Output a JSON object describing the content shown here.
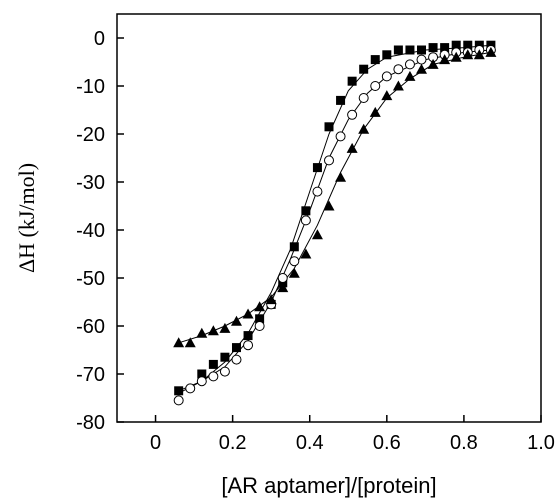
{
  "chart_data": {
    "type": "scatter",
    "xlabel": "[AR aptamer]/[protein]",
    "ylabel": "ΔH (kJ/mol)",
    "xlim": [
      -0.1,
      1.0
    ],
    "ylim": [
      -80,
      5
    ],
    "x_ticks": [
      0,
      0.2,
      0.4,
      0.6,
      0.8,
      1.0
    ],
    "x_tick_labels": [
      "0",
      "0.2",
      "0.4",
      "0.6",
      "0.8",
      "1.0"
    ],
    "y_ticks": [
      0,
      -10,
      -20,
      -30,
      -40,
      -50,
      -60,
      -70,
      -80
    ],
    "y_tick_labels": [
      "0",
      "-10",
      "-20",
      "-30",
      "-40",
      "-50",
      "-60",
      "-70",
      "-80"
    ],
    "grid": false,
    "legend": "none",
    "series": [
      {
        "marker": "filled-square",
        "color": "#000000",
        "points": [
          [
            0.06,
            -73.5
          ],
          [
            0.12,
            -70
          ],
          [
            0.15,
            -68
          ],
          [
            0.18,
            -66.5
          ],
          [
            0.21,
            -64.5
          ],
          [
            0.24,
            -62
          ],
          [
            0.27,
            -58.5
          ],
          [
            0.3,
            -55.5
          ],
          [
            0.33,
            -51
          ],
          [
            0.36,
            -43.5
          ],
          [
            0.39,
            -36
          ],
          [
            0.42,
            -27
          ],
          [
            0.45,
            -18.5
          ],
          [
            0.48,
            -13
          ],
          [
            0.51,
            -9
          ],
          [
            0.54,
            -6.5
          ],
          [
            0.57,
            -4.5
          ],
          [
            0.6,
            -3.5
          ],
          [
            0.63,
            -2.5
          ],
          [
            0.66,
            -2.5
          ],
          [
            0.69,
            -2.5
          ],
          [
            0.72,
            -2
          ],
          [
            0.75,
            -2
          ],
          [
            0.78,
            -1.5
          ],
          [
            0.81,
            -1.5
          ],
          [
            0.84,
            -1.5
          ],
          [
            0.87,
            -1.5
          ]
        ],
        "fit": [
          [
            0.06,
            -73.5
          ],
          [
            0.12,
            -71.5
          ],
          [
            0.18,
            -67.5
          ],
          [
            0.24,
            -61.5
          ],
          [
            0.3,
            -53
          ],
          [
            0.35,
            -44
          ],
          [
            0.4,
            -32
          ],
          [
            0.45,
            -20
          ],
          [
            0.5,
            -11
          ],
          [
            0.55,
            -6.5
          ],
          [
            0.6,
            -4
          ],
          [
            0.7,
            -2.5
          ],
          [
            0.8,
            -2
          ],
          [
            0.87,
            -1.5
          ]
        ]
      },
      {
        "marker": "open-circle",
        "color": "#000000",
        "points": [
          [
            0.06,
            -75.5
          ],
          [
            0.09,
            -73
          ],
          [
            0.12,
            -71.5
          ],
          [
            0.15,
            -70.5
          ],
          [
            0.18,
            -69.5
          ],
          [
            0.21,
            -67
          ],
          [
            0.24,
            -64
          ],
          [
            0.27,
            -60
          ],
          [
            0.3,
            -55.5
          ],
          [
            0.33,
            -50
          ],
          [
            0.36,
            -46.5
          ],
          [
            0.39,
            -38
          ],
          [
            0.42,
            -32
          ],
          [
            0.45,
            -25.5
          ],
          [
            0.48,
            -20.5
          ],
          [
            0.51,
            -16
          ],
          [
            0.54,
            -12.5
          ],
          [
            0.57,
            -10
          ],
          [
            0.6,
            -8
          ],
          [
            0.63,
            -6.5
          ],
          [
            0.66,
            -5.5
          ],
          [
            0.69,
            -4.5
          ],
          [
            0.72,
            -4
          ],
          [
            0.75,
            -3.5
          ],
          [
            0.78,
            -3
          ],
          [
            0.81,
            -3
          ],
          [
            0.84,
            -2.5
          ],
          [
            0.87,
            -2.5
          ]
        ],
        "fit": [
          [
            0.06,
            -74
          ],
          [
            0.12,
            -71.5
          ],
          [
            0.18,
            -68.5
          ],
          [
            0.24,
            -63
          ],
          [
            0.3,
            -55
          ],
          [
            0.35,
            -46
          ],
          [
            0.4,
            -36
          ],
          [
            0.45,
            -25
          ],
          [
            0.5,
            -17
          ],
          [
            0.55,
            -11.5
          ],
          [
            0.6,
            -8
          ],
          [
            0.7,
            -4.5
          ],
          [
            0.8,
            -3
          ],
          [
            0.87,
            -2.5
          ]
        ]
      },
      {
        "marker": "filled-triangle",
        "color": "#000000",
        "points": [
          [
            0.06,
            -63.5
          ],
          [
            0.09,
            -63.5
          ],
          [
            0.12,
            -61.5
          ],
          [
            0.15,
            -61
          ],
          [
            0.18,
            -60.5
          ],
          [
            0.21,
            -59
          ],
          [
            0.24,
            -57.5
          ],
          [
            0.27,
            -56
          ],
          [
            0.3,
            -54.5
          ],
          [
            0.33,
            -52
          ],
          [
            0.36,
            -49
          ],
          [
            0.39,
            -45
          ],
          [
            0.42,
            -41
          ],
          [
            0.45,
            -35
          ],
          [
            0.48,
            -29
          ],
          [
            0.51,
            -23
          ],
          [
            0.54,
            -19
          ],
          [
            0.57,
            -15.5
          ],
          [
            0.6,
            -12
          ],
          [
            0.63,
            -10
          ],
          [
            0.66,
            -8
          ],
          [
            0.69,
            -6.5
          ],
          [
            0.72,
            -5.5
          ],
          [
            0.75,
            -4.5
          ],
          [
            0.78,
            -4
          ],
          [
            0.81,
            -3.5
          ],
          [
            0.84,
            -3.5
          ],
          [
            0.87,
            -3
          ]
        ],
        "fit": [
          [
            0.06,
            -63.5
          ],
          [
            0.12,
            -62
          ],
          [
            0.18,
            -60
          ],
          [
            0.24,
            -57.5
          ],
          [
            0.3,
            -54
          ],
          [
            0.36,
            -48
          ],
          [
            0.42,
            -39
          ],
          [
            0.48,
            -28
          ],
          [
            0.54,
            -19
          ],
          [
            0.6,
            -12.5
          ],
          [
            0.66,
            -8.5
          ],
          [
            0.72,
            -5.5
          ],
          [
            0.8,
            -4
          ],
          [
            0.87,
            -3
          ]
        ]
      }
    ]
  }
}
